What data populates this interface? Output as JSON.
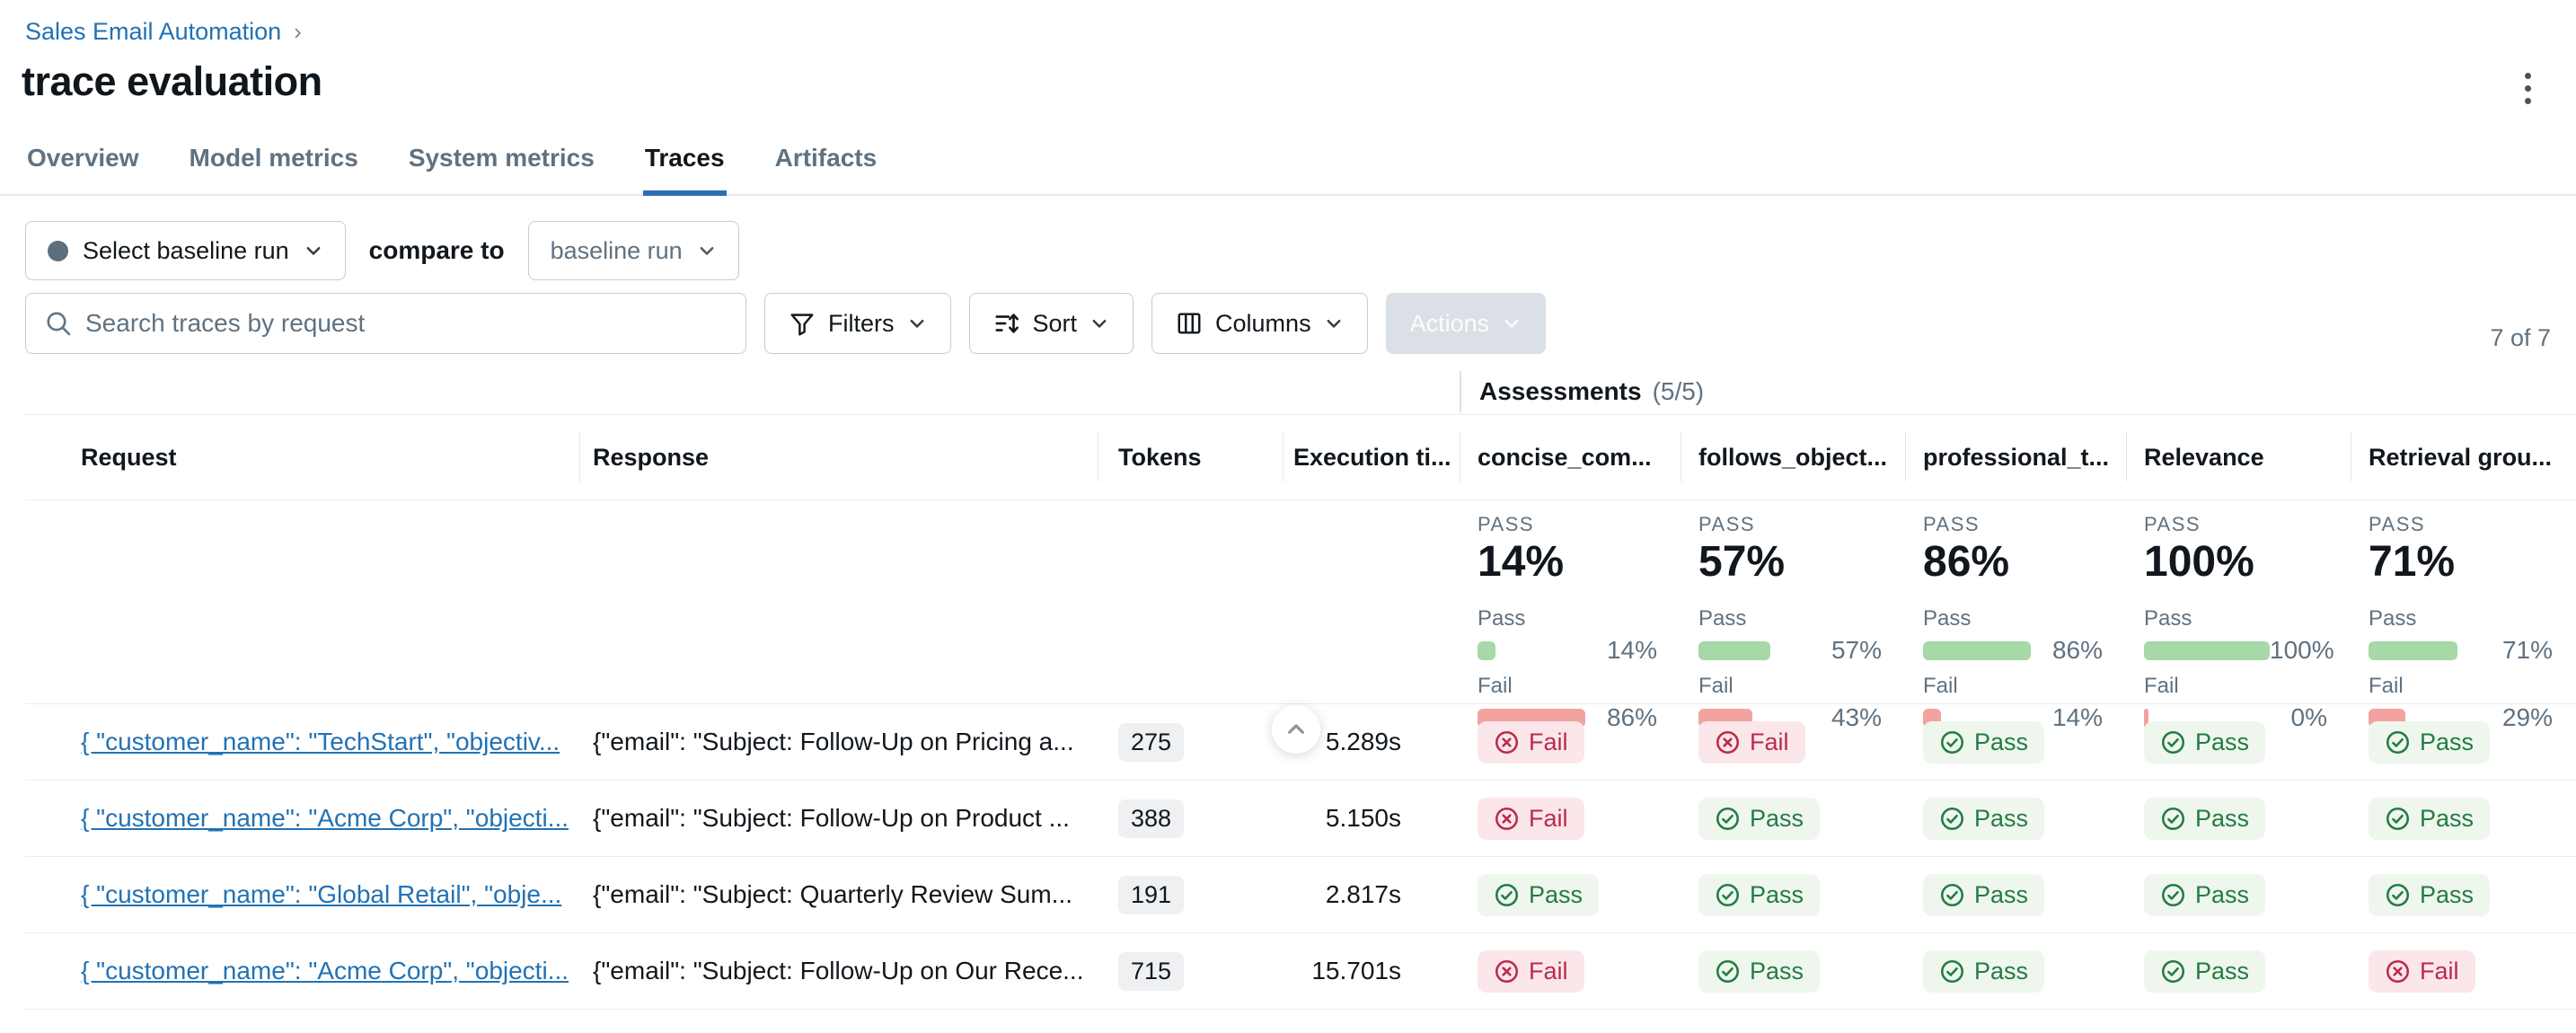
{
  "breadcrumb": {
    "link": "Sales Email Automation",
    "separator": "›"
  },
  "page": {
    "title": "trace evaluation"
  },
  "tabs": [
    {
      "label": "Overview",
      "active": false
    },
    {
      "label": "Model metrics",
      "active": false
    },
    {
      "label": "System metrics",
      "active": false
    },
    {
      "label": "Traces",
      "active": true
    },
    {
      "label": "Artifacts",
      "active": false
    }
  ],
  "comparison": {
    "baseline_select_label": "Select baseline run",
    "compare_to_label": "compare to",
    "baseline_run_label": "baseline run"
  },
  "toolbar": {
    "search_placeholder": "Search traces by request",
    "filters_label": "Filters",
    "sort_label": "Sort",
    "columns_label": "Columns",
    "actions_label": "Actions",
    "count_label": "7 of 7"
  },
  "table": {
    "group_header": {
      "title": "Assessments",
      "count": "(5/5)"
    },
    "columns": [
      "Request",
      "Response",
      "Tokens",
      "Execution ti...",
      "concise_com...",
      "follows_object...",
      "professional_t...",
      "Relevance",
      "Retrieval grou..."
    ],
    "assessments": [
      {
        "name": "concise_com...",
        "header_label": "PASS",
        "pass_pct": "14%",
        "pass_label": "Pass",
        "fail_label": "Fail",
        "pass_value": 14,
        "fail_value": 86,
        "pass_value_label": "14%",
        "fail_value_label": "86%"
      },
      {
        "name": "follows_object...",
        "header_label": "PASS",
        "pass_pct": "57%",
        "pass_label": "Pass",
        "fail_label": "Fail",
        "pass_value": 57,
        "fail_value": 43,
        "pass_value_label": "57%",
        "fail_value_label": "43%"
      },
      {
        "name": "professional_t...",
        "header_label": "PASS",
        "pass_pct": "86%",
        "pass_label": "Pass",
        "fail_label": "Fail",
        "pass_value": 86,
        "fail_value": 14,
        "pass_value_label": "86%",
        "fail_value_label": "14%"
      },
      {
        "name": "Relevance",
        "header_label": "PASS",
        "pass_pct": "100%",
        "pass_label": "Pass",
        "fail_label": "Fail",
        "pass_value": 100,
        "fail_value": 0,
        "pass_value_label": "100%",
        "fail_value_label": "0%"
      },
      {
        "name": "Retrieval grou...",
        "header_label": "PASS",
        "pass_pct": "71%",
        "pass_label": "Pass",
        "fail_label": "Fail",
        "pass_value": 71,
        "fail_value": 29,
        "pass_value_label": "71%",
        "fail_value_label": "29%"
      }
    ],
    "rows": [
      {
        "request": "{ \"customer_name\": \"TechStart\", \"objectiv...",
        "response": "{\"email\": \"Subject: Follow-Up on Pricing a...",
        "tokens": "275",
        "execution_time": "5.289s",
        "results": [
          {
            "label": "Fail",
            "status": "fail"
          },
          {
            "label": "Fail",
            "status": "fail"
          },
          {
            "label": "Pass",
            "status": "pass"
          },
          {
            "label": "Pass",
            "status": "pass"
          },
          {
            "label": "Pass",
            "status": "pass"
          }
        ]
      },
      {
        "request": "{ \"customer_name\": \"Acme Corp\", \"objecti...",
        "response": "{\"email\": \"Subject: Follow-Up on Product ...",
        "tokens": "388",
        "execution_time": "5.150s",
        "results": [
          {
            "label": "Fail",
            "status": "fail"
          },
          {
            "label": "Pass",
            "status": "pass"
          },
          {
            "label": "Pass",
            "status": "pass"
          },
          {
            "label": "Pass",
            "status": "pass"
          },
          {
            "label": "Pass",
            "status": "pass"
          }
        ]
      },
      {
        "request": "{ \"customer_name\": \"Global Retail\", \"obje...",
        "response": "{\"email\": \"Subject: Quarterly Review Sum...",
        "tokens": "191",
        "execution_time": "2.817s",
        "results": [
          {
            "label": "Pass",
            "status": "pass"
          },
          {
            "label": "Pass",
            "status": "pass"
          },
          {
            "label": "Pass",
            "status": "pass"
          },
          {
            "label": "Pass",
            "status": "pass"
          },
          {
            "label": "Pass",
            "status": "pass"
          }
        ]
      },
      {
        "request": "{ \"customer_name\": \"Acme Corp\", \"objecti...",
        "response": "{\"email\": \"Subject: Follow-Up on Our Rece...",
        "tokens": "715",
        "execution_time": "15.701s",
        "results": [
          {
            "label": "Fail",
            "status": "fail"
          },
          {
            "label": "Pass",
            "status": "pass"
          },
          {
            "label": "Pass",
            "status": "pass"
          },
          {
            "label": "Pass",
            "status": "pass"
          },
          {
            "label": "Fail",
            "status": "fail"
          }
        ]
      }
    ]
  },
  "colors": {
    "accent_blue": "#2272b4",
    "pass_text": "#237c41",
    "pass_bar": "#a6d8a8",
    "fail_text": "#b92b4b",
    "fail_bar": "#f2a3a0"
  }
}
